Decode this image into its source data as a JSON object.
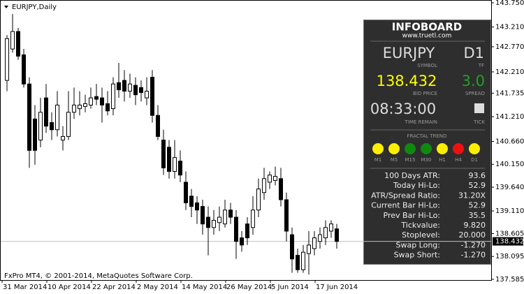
{
  "chart_data": {
    "type": "candlestick",
    "title": "EURJPY,Daily",
    "annotation": "FxPro MT4, © 2001-2014, MetaQuotes Software Corp.",
    "categories": [
      "31 Mar 2014",
      null,
      null,
      null,
      null,
      null,
      null,
      null,
      "10 Apr 2014",
      null,
      null,
      null,
      null,
      null,
      null,
      null,
      "22 Apr 2014",
      null,
      null,
      null,
      null,
      null,
      null,
      null,
      "2 May 2014",
      null,
      null,
      null,
      null,
      null,
      null,
      null,
      "14 May 2014",
      null,
      null,
      null,
      null,
      null,
      null,
      null,
      "26 May 2014",
      null,
      null,
      null,
      null,
      null,
      null,
      null,
      "5 Jun 2014",
      null,
      null,
      null,
      null,
      null,
      null,
      null,
      "17 Jun 2014",
      null,
      null,
      null
    ],
    "open": [
      142.02,
      142.72,
      143.11,
      142.59,
      141.94,
      141.16,
      140.69,
      141.63,
      141.08,
      140.92,
      140.69,
      140.77,
      141.31,
      141.39,
      141.44,
      141.47,
      141.66,
      141.63,
      141.5,
      141.39,
      141.97,
      142.02,
      141.78,
      141.91,
      141.86,
      141.63,
      142.09,
      141.24,
      140.69,
      140.53,
      139.99,
      140.22,
      139.75,
      139.44,
      139.29,
      139.21,
      138.97,
      138.74,
      138.85,
      138.82,
      139.13,
      138.97,
      138.51,
      138.82,
      138.74,
      139.13,
      139.52,
      139.75,
      139.79,
      139.83,
      139.36,
      138.58,
      138.12,
      137.8,
      138.16,
      138.27,
      138.43,
      138.51,
      138.66,
      138.71
    ],
    "high": [
      143.03,
      143.5,
      143.19,
      142.72,
      142.09,
      141.47,
      141.63,
      141.94,
      141.31,
      141.78,
      141.0,
      141.78,
      141.86,
      141.78,
      141.7,
      141.86,
      141.94,
      141.86,
      141.78,
      142.09,
      142.41,
      142.25,
      142.17,
      142.09,
      142.02,
      142.09,
      142.25,
      141.47,
      140.92,
      140.69,
      140.69,
      140.46,
      139.99,
      139.6,
      139.44,
      139.36,
      139.21,
      139.13,
      139.21,
      139.36,
      139.29,
      139.13,
      138.66,
      138.97,
      139.44,
      139.83,
      140.07,
      139.99,
      140.1,
      140.07,
      139.52,
      138.74,
      138.27,
      138.35,
      138.66,
      138.66,
      138.74,
      138.9,
      138.9,
      138.82
    ],
    "low": [
      141.78,
      142.64,
      142.48,
      141.86,
      140.07,
      140.14,
      140.53,
      140.85,
      140.69,
      140.77,
      140.46,
      140.69,
      141.16,
      141.24,
      141.31,
      141.39,
      141.47,
      141.08,
      141.24,
      141.24,
      141.63,
      141.55,
      141.63,
      141.47,
      141.55,
      141.47,
      141.08,
      140.69,
      139.91,
      139.83,
      139.83,
      139.75,
      139.13,
      138.97,
      138.82,
      138.58,
      138.12,
      138.58,
      138.66,
      138.74,
      138.82,
      138.04,
      138.2,
      138.35,
      138.58,
      138.97,
      139.36,
      139.6,
      139.68,
      139.21,
      138.43,
      137.73,
      137.73,
      137.73,
      137.69,
      138.12,
      138.27,
      138.35,
      138.51,
      138.27
    ],
    "close": [
      142.95,
      143.11,
      142.56,
      141.94,
      140.46,
      140.46,
      141.31,
      141.0,
      140.92,
      141.47,
      140.77,
      141.31,
      141.47,
      141.47,
      141.5,
      141.63,
      141.6,
      141.47,
      141.34,
      141.94,
      141.81,
      141.78,
      141.94,
      141.7,
      141.75,
      141.78,
      141.24,
      140.77,
      140.07,
      139.99,
      140.3,
      139.91,
      139.29,
      139.21,
      139.13,
      138.82,
      138.74,
      138.9,
      138.97,
      139.13,
      138.97,
      138.43,
      138.35,
      138.51,
      139.13,
      139.6,
      139.83,
      139.91,
      139.88,
      139.36,
      138.66,
      138.04,
      137.8,
      138.19,
      138.35,
      138.51,
      138.58,
      138.74,
      138.82,
      138.43
    ],
    "ylim": [
      137.585,
      143.75
    ],
    "yticks": [
      {
        "value": 143.75,
        "label": "143.750"
      },
      {
        "value": 143.21,
        "label": "143.210"
      },
      {
        "value": 142.77,
        "label": "142.770"
      },
      {
        "value": 142.21,
        "label": "142.210"
      },
      141.735,
      {
        "value": 141.21,
        "label": "141.210"
      },
      {
        "value": 140.66,
        "label": "140.660"
      },
      {
        "value": 140.15,
        "label": "140.150"
      },
      {
        "value": 139.64,
        "label": "139.640"
      },
      {
        "value": 139.11,
        "label": "139.110"
      },
      138.605,
      138.095,
      137.585
    ],
    "price_line": 138.432
  },
  "infoboard": {
    "title": "INFOBOARD",
    "url": "www.truetl.com",
    "symbol": "EURJPY",
    "symbol_label": "SYMBOL",
    "timeframe": "D1",
    "timeframe_label": "TF",
    "bid_price": "138.432",
    "bid_price_label": "BID PRICE",
    "spread": "3.0",
    "spread_label": "SPREAD",
    "time_remain": "08:33:00",
    "time_remain_label": "TIME REMAIN",
    "tick_label": "TICK",
    "fractal_trend": {
      "title": "FRACTAL TREND",
      "items": [
        {
          "label": "M1",
          "color": "#ffee00"
        },
        {
          "label": "M5",
          "color": "#ffee00"
        },
        {
          "label": "M15",
          "color": "#118811"
        },
        {
          "label": "M30",
          "color": "#118811"
        },
        {
          "label": "H1",
          "color": "#ffee00"
        },
        {
          "label": "H4",
          "color": "#ee1111"
        },
        {
          "label": "D1",
          "color": "#ffee00"
        }
      ]
    },
    "stats": [
      [
        "100 Days ATR:",
        "93.6"
      ],
      [
        "Today Hi-Lo:",
        "52.9"
      ],
      [
        "ATR/Spread Ratio:",
        "31.20X"
      ],
      [
        "Current Bar Hi-Lo:",
        "52.9"
      ],
      [
        "Prev Bar Hi-Lo:",
        "35.5"
      ],
      [
        "Tickvalue:",
        "9.820"
      ],
      [
        "Stoplevel:",
        "20.000"
      ],
      [
        "Swap Long:",
        "-1.270"
      ],
      [
        "Swap Short:",
        "-1.270"
      ]
    ]
  }
}
